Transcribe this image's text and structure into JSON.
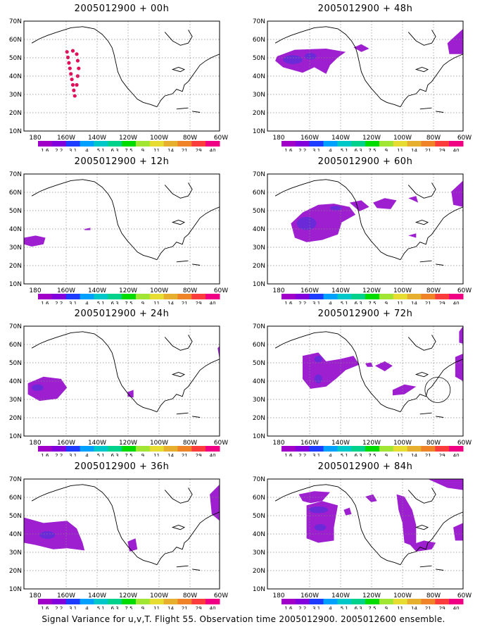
{
  "caption": "Signal Variance for u,v,T. Flight 55. Observation time 2005012900. 2005012600 ensemble.",
  "lat_labels": [
    "70N",
    "60N",
    "50N",
    "40N",
    "30N",
    "20N",
    "10N"
  ],
  "lon_labels": [
    "180",
    "160W",
    "140W",
    "120W",
    "100W",
    "80W",
    "60W"
  ],
  "colorbar": {
    "colors": [
      "#a000c8",
      "#8200dc",
      "#1e3cff",
      "#00a0ff",
      "#00c8c8",
      "#00d28c",
      "#00dc00",
      "#a0e632",
      "#e6dc32",
      "#e6af2d",
      "#f08228",
      "#fa3c3c",
      "#f00082"
    ],
    "labels": [
      "1.6",
      "2.2",
      "3.1",
      "4",
      "5.1",
      "6.3",
      "7.5",
      "9",
      "11",
      "14",
      "21",
      "29",
      "40"
    ]
  },
  "panels": [
    {
      "title": "2005012900 + 00h",
      "col": 0,
      "row": 0
    },
    {
      "title": "2005012900 + 12h",
      "col": 0,
      "row": 1
    },
    {
      "title": "2005012900 + 24h",
      "col": 0,
      "row": 2
    },
    {
      "title": "2005012900 + 36h",
      "col": 0,
      "row": 3
    },
    {
      "title": "2005012900 + 48h",
      "col": 1,
      "row": 0
    },
    {
      "title": "2005012900 + 60h",
      "col": 1,
      "row": 1
    },
    {
      "title": "2005012900 + 72h",
      "col": 1,
      "row": 2
    },
    {
      "title": "2005012900 + 84h",
      "col": 1,
      "row": 3
    }
  ],
  "shading": {
    "fill": "#9d1fd0",
    "core": "#6a2ad8",
    "track_color": "#e0105a"
  }
}
